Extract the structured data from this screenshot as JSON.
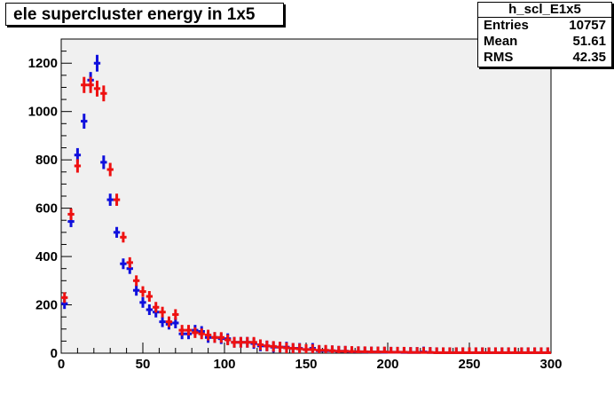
{
  "title": "ele supercluster energy in 1x5",
  "stats": {
    "name": "h_scl_E1x5",
    "rows": [
      {
        "label": "Entries",
        "value": "10757"
      },
      {
        "label": "Mean",
        "value": "51.61"
      },
      {
        "label": "RMS",
        "value": "42.35"
      }
    ]
  },
  "colors": {
    "frame_bg": "#f0f0f0",
    "blue_series": "#1010dd",
    "red_series": "#ee1111"
  },
  "chart_data": {
    "type": "scatter",
    "title": "ele supercluster energy in 1x5",
    "xlabel": "",
    "ylabel": "",
    "xlim": [
      0,
      300
    ],
    "ylim": [
      0,
      1300
    ],
    "xticks": [
      0,
      50,
      100,
      150,
      200,
      250,
      300
    ],
    "yticks": [
      0,
      200,
      400,
      600,
      800,
      1000,
      1200
    ],
    "bin_width": 4,
    "grid": false,
    "series": [
      {
        "color": "#1010dd",
        "x": [
          2,
          6,
          10,
          14,
          18,
          22,
          26,
          30,
          34,
          38,
          42,
          46,
          50,
          54,
          58,
          62,
          66,
          70,
          74,
          78,
          82,
          86,
          90,
          94,
          98,
          102,
          106,
          110,
          114,
          118,
          122,
          126,
          130,
          134,
          138,
          142,
          146,
          150,
          154,
          158,
          162,
          166,
          170,
          174,
          178,
          182,
          186,
          190,
          194,
          198,
          202,
          206,
          210,
          214,
          218,
          222,
          226,
          230,
          234,
          238,
          242,
          246,
          250,
          254,
          258,
          262,
          266,
          270,
          274,
          278,
          282,
          286,
          290,
          294,
          298
        ],
        "y": [
          205,
          545,
          820,
          960,
          1130,
          1200,
          790,
          635,
          500,
          370,
          350,
          260,
          210,
          180,
          170,
          130,
          120,
          125,
          80,
          80,
          95,
          90,
          65,
          65,
          60,
          60,
          45,
          45,
          45,
          40,
          30,
          30,
          25,
          25,
          25,
          20,
          20,
          15,
          20,
          10,
          10,
          10,
          8,
          8,
          6,
          6,
          5,
          5,
          5,
          4,
          4,
          4,
          3,
          3,
          3,
          5,
          3,
          2,
          2,
          2,
          2,
          2,
          2,
          2,
          2,
          2,
          2,
          2,
          2,
          2,
          2,
          2,
          2,
          2,
          2
        ],
        "x_positions_note": ""
      },
      {
        "color": "#ee1111",
        "x": [
          2,
          6,
          10,
          14,
          18,
          22,
          26,
          30,
          34,
          38,
          42,
          46,
          50,
          54,
          58,
          62,
          66,
          70,
          74,
          78,
          82,
          86,
          90,
          94,
          98,
          102,
          106,
          110,
          114,
          118,
          122,
          126,
          130,
          134,
          138,
          142,
          146,
          150,
          154,
          158,
          162,
          166,
          170,
          174,
          178,
          182,
          186,
          190,
          194,
          198,
          202,
          206,
          210,
          214,
          218,
          222,
          226,
          230,
          234,
          238,
          242,
          246,
          250,
          254,
          258,
          262,
          266,
          270,
          274,
          278,
          282,
          286,
          290,
          294,
          298
        ],
        "y": [
          230,
          575,
          775,
          1110,
          1110,
          1095,
          1075,
          760,
          635,
          480,
          375,
          300,
          255,
          235,
          190,
          170,
          130,
          160,
          95,
          95,
          85,
          80,
          75,
          65,
          65,
          55,
          45,
          45,
          45,
          45,
          35,
          30,
          28,
          25,
          22,
          20,
          18,
          15,
          15,
          12,
          12,
          10,
          8,
          8,
          7,
          6,
          6,
          5,
          5,
          5,
          4,
          4,
          4,
          3,
          3,
          3,
          3,
          2,
          2,
          2,
          2,
          2,
          2,
          2,
          2,
          2,
          2,
          2,
          2,
          2,
          2,
          2,
          2,
          2,
          2
        ]
      }
    ]
  }
}
